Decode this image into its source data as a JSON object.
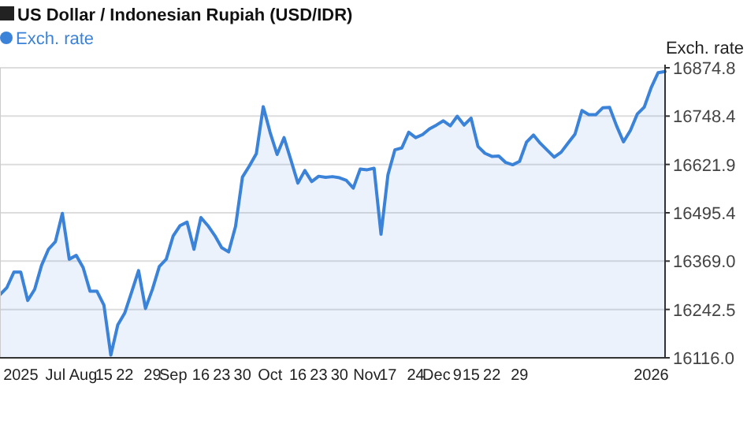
{
  "chart_data": {
    "type": "area",
    "title": "US Dollar / Indonesian Rupiah (USD/IDR)",
    "ylabel": "Exch. rate",
    "legend": "top left",
    "grid": "y",
    "categories": [
      null,
      null,
      null,
      "2025",
      null,
      null,
      null,
      null,
      "Jul",
      null,
      null,
      null,
      "Aug",
      null,
      null,
      "15",
      null,
      null,
      "22",
      null,
      null,
      null,
      "29",
      null,
      null,
      "Sep",
      null,
      null,
      null,
      "16",
      null,
      null,
      "23",
      null,
      null,
      "30",
      null,
      null,
      null,
      "Oct",
      null,
      null,
      null,
      "16",
      null,
      null,
      "23",
      null,
      null,
      "30",
      null,
      null,
      null,
      "Nov",
      null,
      null,
      "17",
      null,
      null,
      null,
      "24",
      null,
      null,
      "Dec",
      null,
      null,
      "9",
      null,
      "15",
      null,
      null,
      "22",
      null,
      null,
      null,
      "29",
      null,
      null,
      null,
      null,
      null,
      null,
      null,
      null,
      null,
      null,
      null,
      null,
      null,
      null,
      null,
      null,
      null,
      null,
      "2026",
      null,
      null
    ],
    "ylim": [
      16116,
      16874.8
    ],
    "yticks": [
      {
        "value": 16116,
        "label": "16116.0"
      },
      {
        "value": 16242.5,
        "label": "16242.5"
      },
      {
        "value": 16369,
        "label": "16369.0"
      },
      {
        "value": 16495.4,
        "label": "16495.4"
      },
      {
        "value": 16621.9,
        "label": "16621.9"
      },
      {
        "value": 16748.4,
        "label": "16748.4"
      },
      {
        "value": 16874.8,
        "label": "16874.8"
      }
    ],
    "series": [
      {
        "name": "Exch. rate",
        "color": "#3b82d9",
        "values": [
          16281,
          16300,
          16340,
          16340,
          16266,
          16295,
          16358,
          16400,
          16420,
          16494,
          16374,
          16384,
          16352,
          16290,
          16290,
          16254,
          16123,
          16202,
          16233,
          16288,
          16344,
          16245,
          16295,
          16355,
          16374,
          16435,
          16462,
          16471,
          16400,
          16483,
          16462,
          16436,
          16404,
          16393,
          16460,
          16589,
          16618,
          16650,
          16773,
          16705,
          16648,
          16692,
          16633,
          16573,
          16606,
          16577,
          16591,
          16588,
          16590,
          16587,
          16580,
          16560,
          16610,
          16608,
          16612,
          16439,
          16595,
          16660,
          16665,
          16706,
          16692,
          16700,
          16715,
          16725,
          16736,
          16723,
          16748,
          16725,
          16743,
          16669,
          16651,
          16643,
          16644,
          16627,
          16621,
          16630,
          16680,
          16699,
          16677,
          16659,
          16641,
          16654,
          16678,
          16701,
          16763,
          16752,
          16752,
          16770,
          16771,
          16723,
          16681,
          16711,
          16754,
          16772,
          16823,
          16862,
          16865
        ]
      }
    ]
  }
}
